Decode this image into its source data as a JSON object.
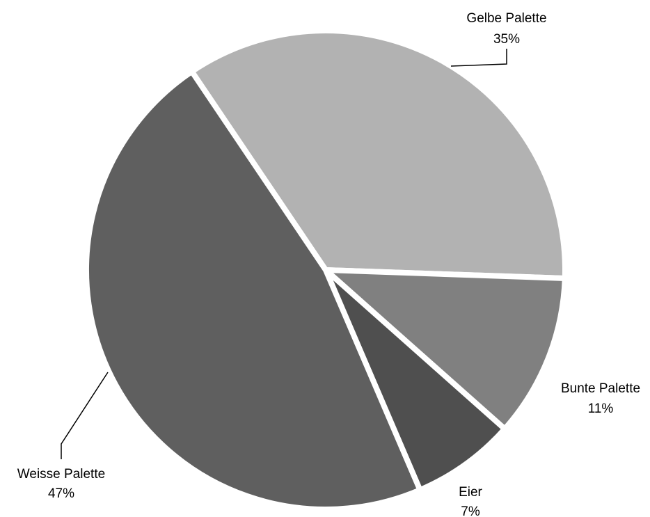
{
  "chart_data": {
    "type": "pie",
    "title": "",
    "slices": [
      {
        "label": "Gelbe Palette",
        "percent_label": "35%",
        "value": 35,
        "color": "#b2b2b2"
      },
      {
        "label": "Bunte Palette",
        "percent_label": "11%",
        "value": 11,
        "color": "#808080"
      },
      {
        "label": "Eier",
        "percent_label": "7%",
        "value": 7,
        "color": "#4f4f4f"
      },
      {
        "label": "Weisse Palette",
        "percent_label": "47%",
        "value": 47,
        "color": "#5f5f5f"
      }
    ],
    "legend": "none",
    "data_labels": "outside-with-leader-lines"
  }
}
